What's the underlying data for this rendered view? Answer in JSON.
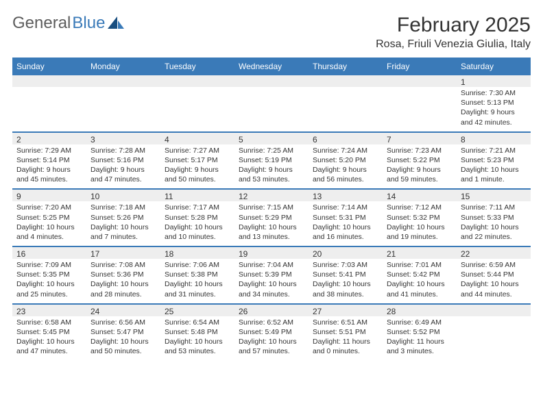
{
  "brand": {
    "part1": "General",
    "part2": "Blue"
  },
  "title": "February 2025",
  "location": "Rosa, Friuli Venezia Giulia, Italy",
  "colors": {
    "header_bg": "#3a7ab8",
    "header_text": "#ffffff",
    "row_border": "#3a7ab8",
    "date_bg": "#eeeeee",
    "text": "#333333",
    "logo_gray": "#5c5c5c",
    "logo_blue": "#3a7ab8",
    "page_bg": "#ffffff"
  },
  "day_names": [
    "Sunday",
    "Monday",
    "Tuesday",
    "Wednesday",
    "Thursday",
    "Friday",
    "Saturday"
  ],
  "weeks": [
    [
      null,
      null,
      null,
      null,
      null,
      null,
      {
        "n": "1",
        "sunrise": "7:30 AM",
        "sunset": "5:13 PM",
        "daylight": "9 hours and 42 minutes."
      }
    ],
    [
      {
        "n": "2",
        "sunrise": "7:29 AM",
        "sunset": "5:14 PM",
        "daylight": "9 hours and 45 minutes."
      },
      {
        "n": "3",
        "sunrise": "7:28 AM",
        "sunset": "5:16 PM",
        "daylight": "9 hours and 47 minutes."
      },
      {
        "n": "4",
        "sunrise": "7:27 AM",
        "sunset": "5:17 PM",
        "daylight": "9 hours and 50 minutes."
      },
      {
        "n": "5",
        "sunrise": "7:25 AM",
        "sunset": "5:19 PM",
        "daylight": "9 hours and 53 minutes."
      },
      {
        "n": "6",
        "sunrise": "7:24 AM",
        "sunset": "5:20 PM",
        "daylight": "9 hours and 56 minutes."
      },
      {
        "n": "7",
        "sunrise": "7:23 AM",
        "sunset": "5:22 PM",
        "daylight": "9 hours and 59 minutes."
      },
      {
        "n": "8",
        "sunrise": "7:21 AM",
        "sunset": "5:23 PM",
        "daylight": "10 hours and 1 minute."
      }
    ],
    [
      {
        "n": "9",
        "sunrise": "7:20 AM",
        "sunset": "5:25 PM",
        "daylight": "10 hours and 4 minutes."
      },
      {
        "n": "10",
        "sunrise": "7:18 AM",
        "sunset": "5:26 PM",
        "daylight": "10 hours and 7 minutes."
      },
      {
        "n": "11",
        "sunrise": "7:17 AM",
        "sunset": "5:28 PM",
        "daylight": "10 hours and 10 minutes."
      },
      {
        "n": "12",
        "sunrise": "7:15 AM",
        "sunset": "5:29 PM",
        "daylight": "10 hours and 13 minutes."
      },
      {
        "n": "13",
        "sunrise": "7:14 AM",
        "sunset": "5:31 PM",
        "daylight": "10 hours and 16 minutes."
      },
      {
        "n": "14",
        "sunrise": "7:12 AM",
        "sunset": "5:32 PM",
        "daylight": "10 hours and 19 minutes."
      },
      {
        "n": "15",
        "sunrise": "7:11 AM",
        "sunset": "5:33 PM",
        "daylight": "10 hours and 22 minutes."
      }
    ],
    [
      {
        "n": "16",
        "sunrise": "7:09 AM",
        "sunset": "5:35 PM",
        "daylight": "10 hours and 25 minutes."
      },
      {
        "n": "17",
        "sunrise": "7:08 AM",
        "sunset": "5:36 PM",
        "daylight": "10 hours and 28 minutes."
      },
      {
        "n": "18",
        "sunrise": "7:06 AM",
        "sunset": "5:38 PM",
        "daylight": "10 hours and 31 minutes."
      },
      {
        "n": "19",
        "sunrise": "7:04 AM",
        "sunset": "5:39 PM",
        "daylight": "10 hours and 34 minutes."
      },
      {
        "n": "20",
        "sunrise": "7:03 AM",
        "sunset": "5:41 PM",
        "daylight": "10 hours and 38 minutes."
      },
      {
        "n": "21",
        "sunrise": "7:01 AM",
        "sunset": "5:42 PM",
        "daylight": "10 hours and 41 minutes."
      },
      {
        "n": "22",
        "sunrise": "6:59 AM",
        "sunset": "5:44 PM",
        "daylight": "10 hours and 44 minutes."
      }
    ],
    [
      {
        "n": "23",
        "sunrise": "6:58 AM",
        "sunset": "5:45 PM",
        "daylight": "10 hours and 47 minutes."
      },
      {
        "n": "24",
        "sunrise": "6:56 AM",
        "sunset": "5:47 PM",
        "daylight": "10 hours and 50 minutes."
      },
      {
        "n": "25",
        "sunrise": "6:54 AM",
        "sunset": "5:48 PM",
        "daylight": "10 hours and 53 minutes."
      },
      {
        "n": "26",
        "sunrise": "6:52 AM",
        "sunset": "5:49 PM",
        "daylight": "10 hours and 57 minutes."
      },
      {
        "n": "27",
        "sunrise": "6:51 AM",
        "sunset": "5:51 PM",
        "daylight": "11 hours and 0 minutes."
      },
      {
        "n": "28",
        "sunrise": "6:49 AM",
        "sunset": "5:52 PM",
        "daylight": "11 hours and 3 minutes."
      },
      null
    ]
  ],
  "labels": {
    "sunrise": "Sunrise:",
    "sunset": "Sunset:",
    "daylight": "Daylight:"
  },
  "layout": {
    "cols": 7,
    "rows": 5,
    "font_size_body": 10.5,
    "font_size_header": 12,
    "font_size_title": 30,
    "font_size_location": 16,
    "border_width": 2
  }
}
